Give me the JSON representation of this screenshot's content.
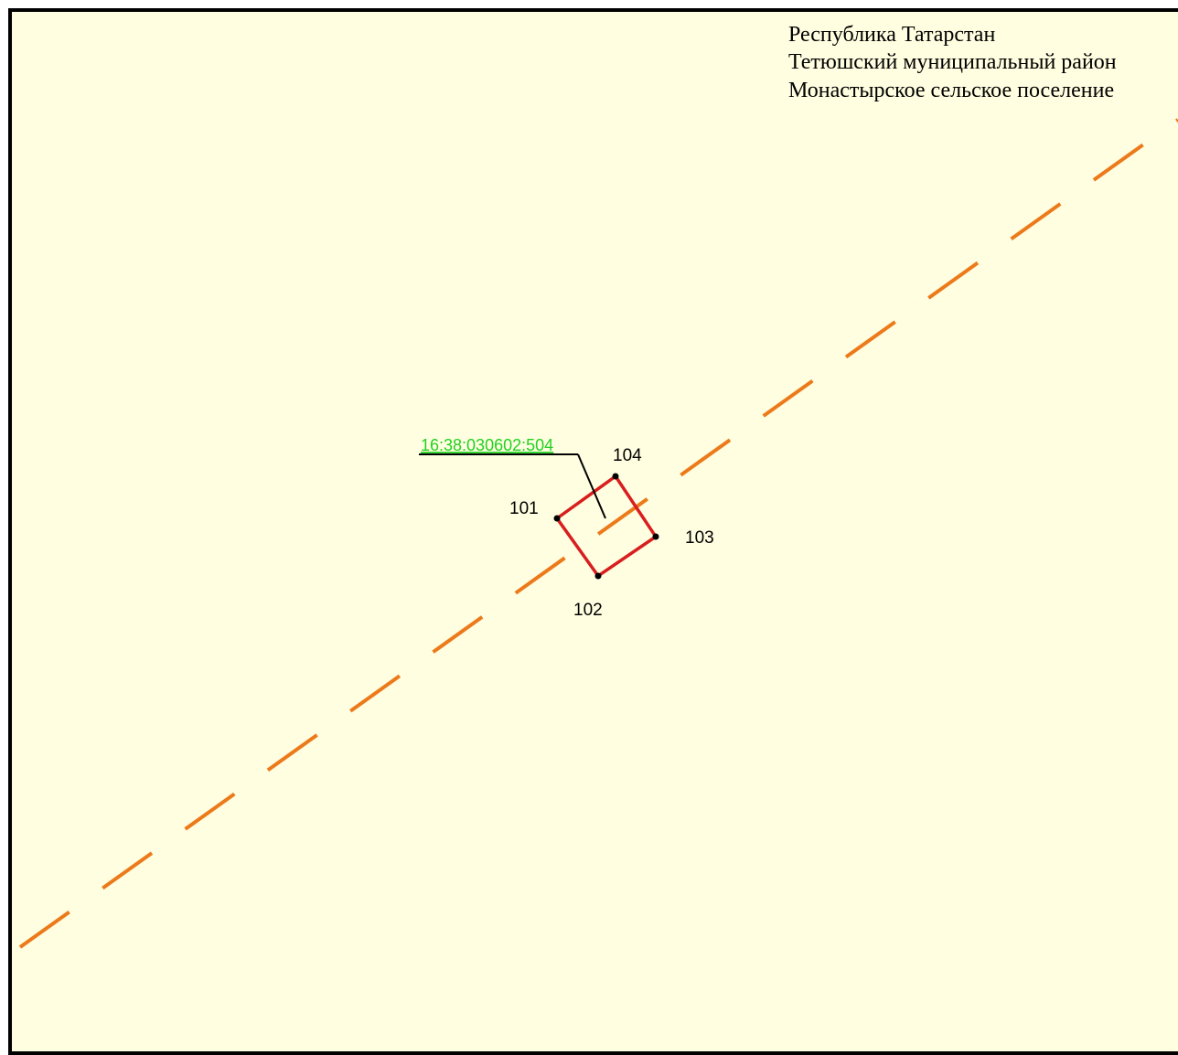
{
  "header": {
    "lines": [
      "Республика Татарстан",
      "Тетюшский муниципальный район",
      "Монастырское сельское поселение"
    ]
  },
  "parcel": {
    "cadastral_number": "16:38:030602:504",
    "points": [
      {
        "id": "101"
      },
      {
        "id": "102"
      },
      {
        "id": "103"
      },
      {
        "id": "104"
      }
    ]
  },
  "colors": {
    "background": "#fffee0",
    "frame": "#000000",
    "boundary_line": "#ec7a1b",
    "parcel_outline": "#d81e1e",
    "cadastral_label": "#22d122",
    "vertex": "#000000"
  },
  "icons": {
    "vertex_marker": "vertex-dot-icon"
  }
}
